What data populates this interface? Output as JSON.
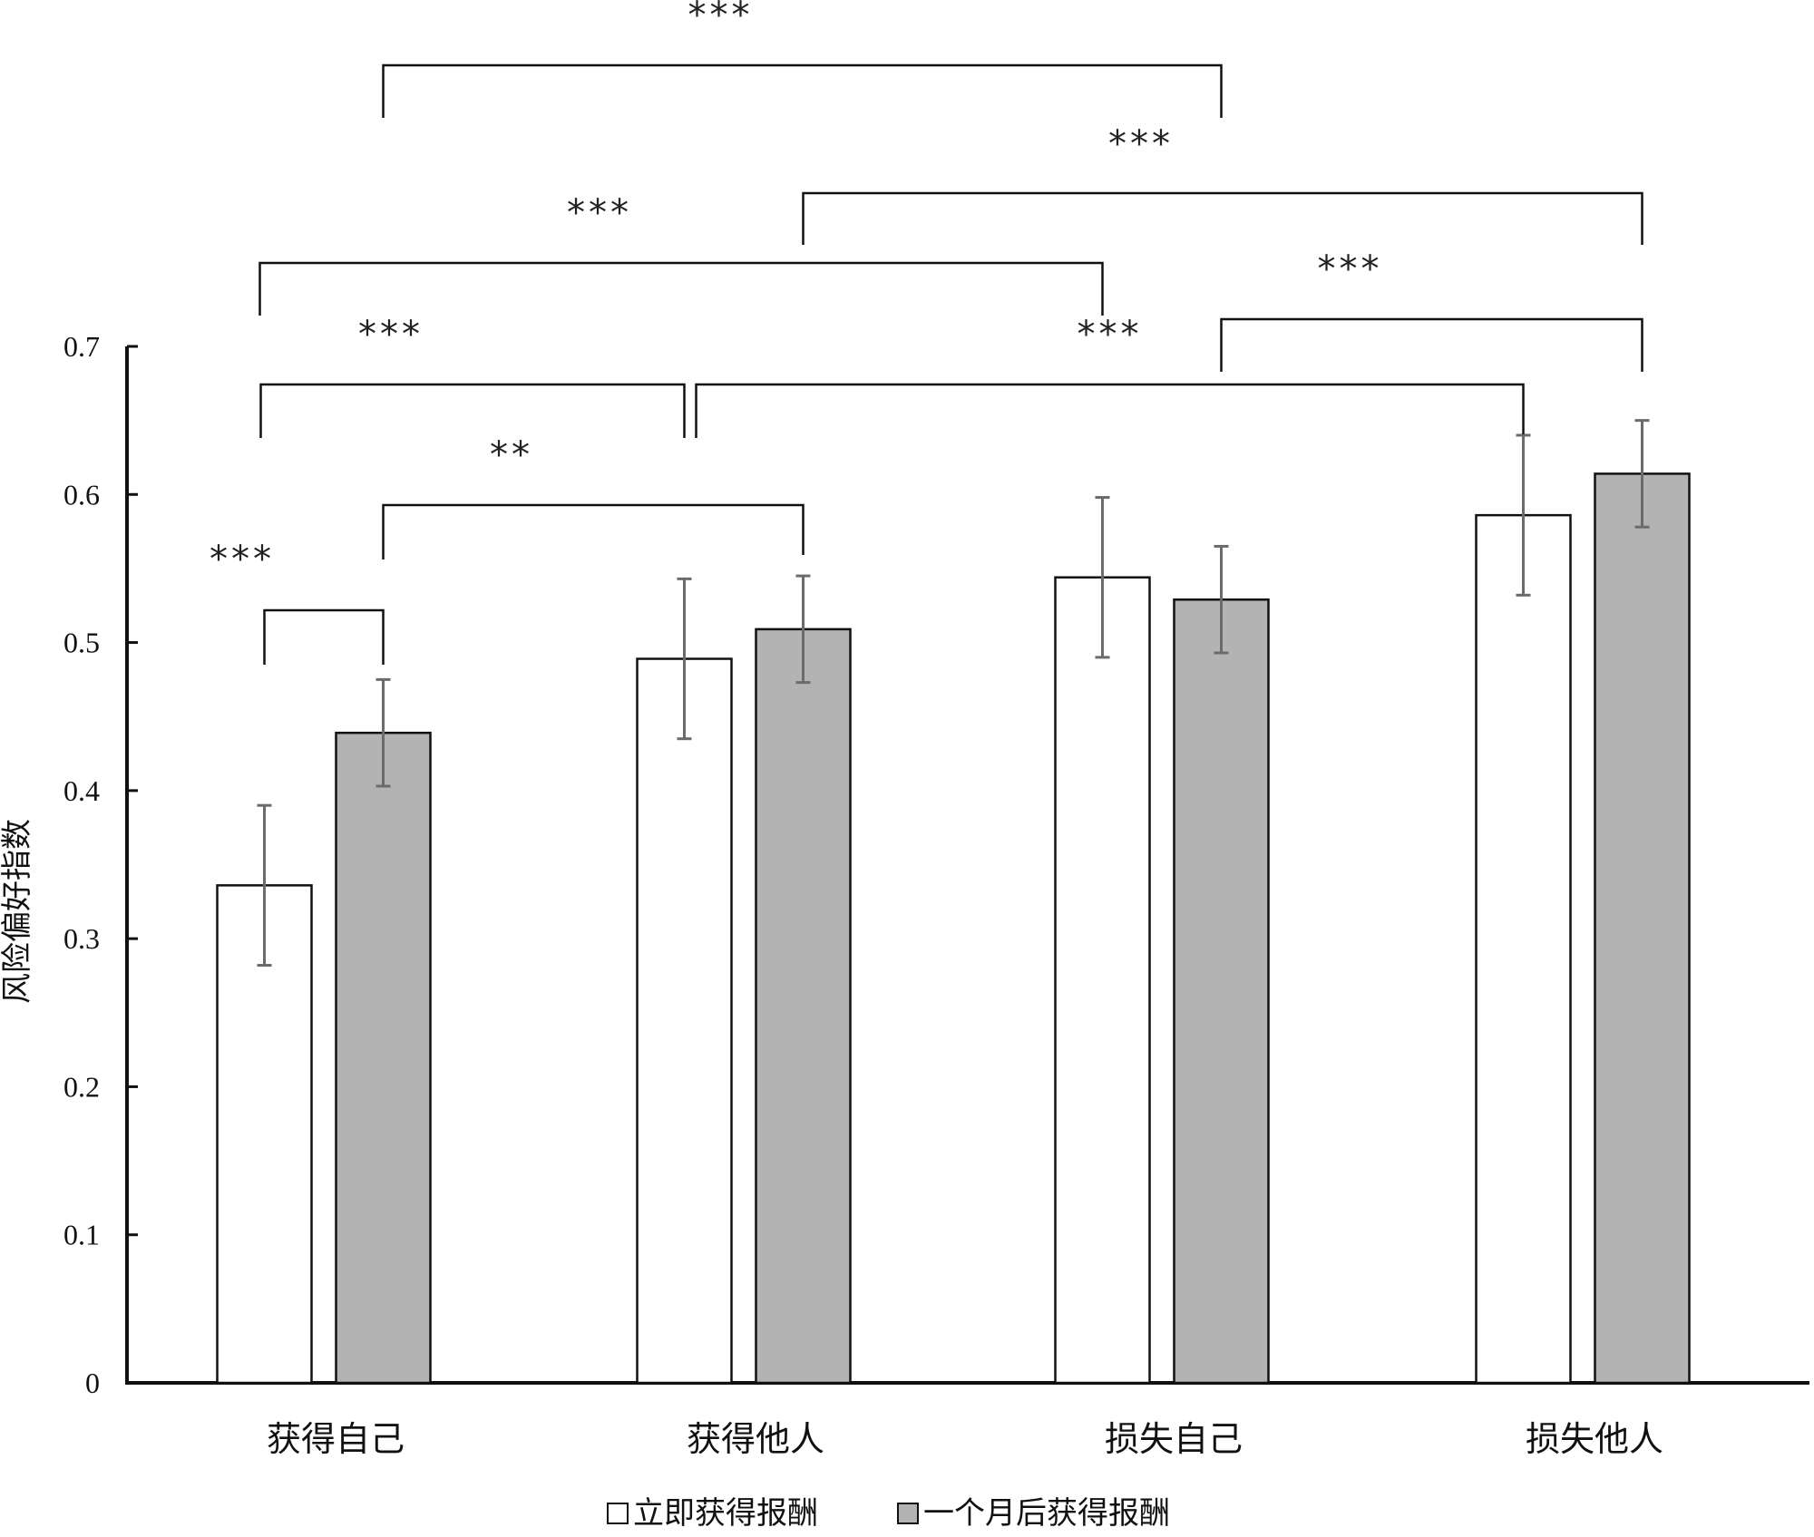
{
  "chart_data": {
    "type": "bar",
    "ylabel": "风险偏好指数",
    "xlabel": "",
    "ylim": [
      0,
      0.7
    ],
    "yticks": [
      "0",
      "0.1",
      "0.2",
      "0.3",
      "0.4",
      "0.5",
      "0.6",
      "0.7"
    ],
    "categories": [
      "获得自己",
      "获得他人",
      "损失自己",
      "损失他人"
    ],
    "series": [
      {
        "name": "立即获得报酬",
        "color": "#ffffff",
        "values": [
          0.336,
          0.489,
          0.544,
          0.586
        ],
        "errors": [
          0.054,
          0.054,
          0.054,
          0.054
        ]
      },
      {
        "name": "一个月后获得报酬",
        "color": "#b3b3b3",
        "values": [
          0.439,
          0.509,
          0.529,
          0.614
        ],
        "errors": [
          0.036,
          0.036,
          0.036,
          0.036
        ]
      }
    ],
    "legend_position": "bottom-center",
    "grid": false,
    "significance": [
      {
        "from": {
          "cat": 0,
          "series": 0
        },
        "to": {
          "cat": 0,
          "series": 1
        },
        "label": "***"
      },
      {
        "from": {
          "cat": 0,
          "series": 1
        },
        "to": {
          "cat": 1,
          "series": 1
        },
        "label": "**"
      },
      {
        "from": {
          "cat": 0,
          "series": 0
        },
        "to": {
          "cat": 1,
          "series": 0
        },
        "label": "***"
      },
      {
        "from": {
          "cat": 1,
          "series": 0
        },
        "to": {
          "cat": 3,
          "series": 0
        },
        "label": "***"
      },
      {
        "from": {
          "cat": 2,
          "series": 1
        },
        "to": {
          "cat": 3,
          "series": 1
        },
        "label": "***"
      },
      {
        "from": {
          "cat": 0,
          "series": 0
        },
        "to": {
          "cat": 2,
          "series": 0
        },
        "label": "***"
      },
      {
        "from": {
          "cat": 1,
          "series": 1
        },
        "to": {
          "cat": 3,
          "series": 1
        },
        "label": "***"
      },
      {
        "from": {
          "cat": 0,
          "series": 1
        },
        "to": {
          "cat": 2,
          "series": 1
        },
        "label": "***"
      }
    ]
  }
}
